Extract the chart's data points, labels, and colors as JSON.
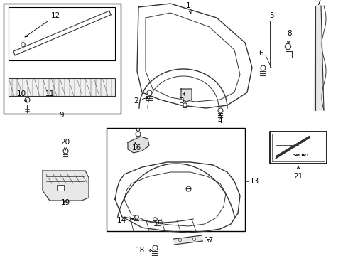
{
  "bg_color": "#ffffff",
  "fig_width": 4.9,
  "fig_height": 3.6,
  "dpi": 100,
  "gray": "#333333",
  "black": "#000000",
  "label_fontsize": 7.5,
  "lw": 0.9
}
